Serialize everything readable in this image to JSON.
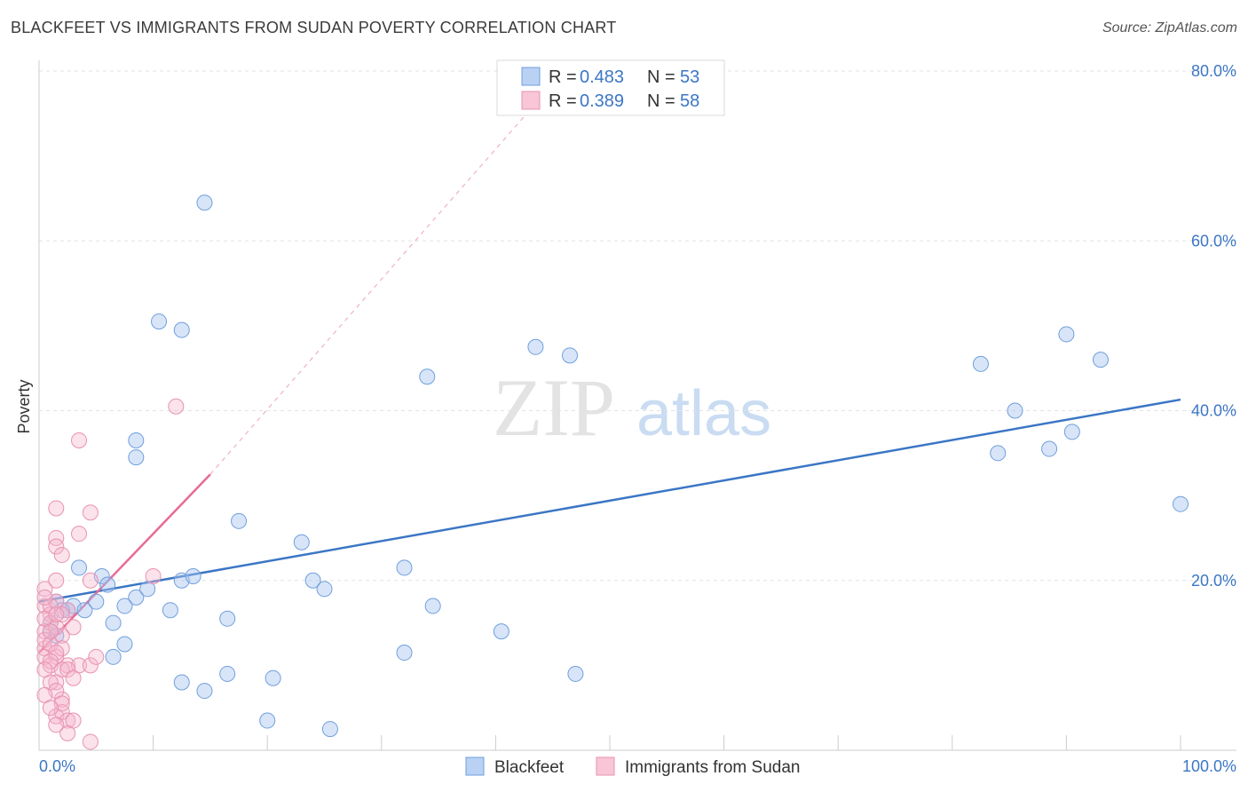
{
  "title": "BLACKFEET VS IMMIGRANTS FROM SUDAN POVERTY CORRELATION CHART",
  "source": "Source: ZipAtlas.com",
  "watermark": {
    "zip": "ZIP",
    "atlas": "atlas"
  },
  "colors": {
    "blue": "#3b76c5",
    "pink": "#e86a95",
    "blue_fill": "#a9c6f0",
    "pink_fill": "#f6b6cc"
  },
  "legend": {
    "blue": {
      "r_label": "R =",
      "r_value": "0.483",
      "n_label": "N =",
      "n_value": "53"
    },
    "pink": {
      "r_label": "R =",
      "r_value": "0.389",
      "n_label": "N =",
      "n_value": "58"
    }
  },
  "bottom_legend": [
    "Blackfeet",
    "Immigrants from Sudan"
  ],
  "chart_data": {
    "type": "scatter",
    "xlabel": "",
    "ylabel": "Poverty",
    "xlim": [
      0,
      100
    ],
    "ylim": [
      0,
      80
    ],
    "x_tick_labels": {
      "min": "0.0%",
      "max": "100.0%"
    },
    "y_tick_labels": [
      "20.0%",
      "40.0%",
      "60.0%",
      "80.0%"
    ],
    "y_ticks": [
      20,
      40,
      60,
      80
    ],
    "series": [
      {
        "name": "Blackfeet",
        "color": "#3b76c5",
        "points": [
          [
            14.5,
            64.5
          ],
          [
            10.5,
            50.5
          ],
          [
            12.5,
            49.5
          ],
          [
            8.5,
            36.5
          ],
          [
            8.5,
            34.5
          ],
          [
            3.5,
            21.5
          ],
          [
            5.5,
            20.5
          ],
          [
            6,
            19.5
          ],
          [
            8.5,
            18
          ],
          [
            9.5,
            19
          ],
          [
            2.5,
            16.5
          ],
          [
            3,
            17
          ],
          [
            4,
            16.5
          ],
          [
            5,
            17.5
          ],
          [
            7.5,
            17
          ],
          [
            11.5,
            16.5
          ],
          [
            6.5,
            15
          ],
          [
            7.5,
            12.5
          ],
          [
            6.5,
            11
          ],
          [
            12.5,
            20
          ],
          [
            13.5,
            20.5
          ],
          [
            17.5,
            27
          ],
          [
            16.5,
            15.5
          ],
          [
            12.5,
            8
          ],
          [
            14.5,
            7
          ],
          [
            16.5,
            9
          ],
          [
            20.5,
            8.5
          ],
          [
            20,
            3.5
          ],
          [
            23,
            24.5
          ],
          [
            24,
            20
          ],
          [
            25,
            19
          ],
          [
            25.5,
            2.5
          ],
          [
            34,
            44
          ],
          [
            32,
            21.5
          ],
          [
            34.5,
            17
          ],
          [
            32,
            11.5
          ],
          [
            40.5,
            14
          ],
          [
            43.5,
            47.5
          ],
          [
            46.5,
            46.5
          ],
          [
            47,
            9
          ],
          [
            82.5,
            45.5
          ],
          [
            85.5,
            40
          ],
          [
            84,
            35
          ],
          [
            88.5,
            35.5
          ],
          [
            90,
            49
          ],
          [
            90.5,
            37.5
          ],
          [
            93,
            46
          ],
          [
            100,
            29
          ],
          [
            1,
            14
          ],
          [
            1.5,
            17.5
          ],
          [
            2,
            16.5
          ],
          [
            1,
            15
          ],
          [
            1.5,
            13.5
          ]
        ]
      },
      {
        "name": "Immigrants from Sudan",
        "color": "#e86a95",
        "points": [
          [
            12,
            40.5
          ],
          [
            3.5,
            36.5
          ],
          [
            1.5,
            28.5
          ],
          [
            4.5,
            28
          ],
          [
            3.5,
            25.5
          ],
          [
            1.5,
            25
          ],
          [
            1.5,
            24
          ],
          [
            2,
            23
          ],
          [
            1.5,
            20
          ],
          [
            4.5,
            20
          ],
          [
            10,
            20.5
          ],
          [
            0.5,
            19
          ],
          [
            0.5,
            17
          ],
          [
            1,
            16
          ],
          [
            1.5,
            17.5
          ],
          [
            2.5,
            16.5
          ],
          [
            1,
            15
          ],
          [
            0.5,
            14
          ],
          [
            2,
            13.5
          ],
          [
            3,
            14.5
          ],
          [
            0.5,
            12
          ],
          [
            1.5,
            11
          ],
          [
            0.5,
            11
          ],
          [
            1,
            10
          ],
          [
            2.5,
            10
          ],
          [
            2,
            9.5
          ],
          [
            3.5,
            10
          ],
          [
            4.5,
            10
          ],
          [
            5,
            11
          ],
          [
            1.5,
            8
          ],
          [
            1,
            8
          ],
          [
            2,
            6
          ],
          [
            1.5,
            4
          ],
          [
            2,
            4.5
          ],
          [
            2.5,
            3.5
          ],
          [
            3,
            3.5
          ],
          [
            2.5,
            2
          ],
          [
            4.5,
            1
          ],
          [
            0.5,
            13
          ],
          [
            1,
            12.5
          ],
          [
            1.5,
            14.5
          ],
          [
            0.5,
            15.5
          ],
          [
            2,
            16
          ],
          [
            1,
            17
          ],
          [
            0.5,
            18
          ],
          [
            1.5,
            16
          ],
          [
            1,
            14
          ],
          [
            2,
            12
          ],
          [
            1.5,
            11.5
          ],
          [
            1,
            10.5
          ],
          [
            0.5,
            9.5
          ],
          [
            2.5,
            9.5
          ],
          [
            3,
            8.5
          ],
          [
            1.5,
            7
          ],
          [
            0.5,
            6.5
          ],
          [
            2,
            5.5
          ],
          [
            1,
            5
          ],
          [
            1.5,
            3
          ]
        ]
      }
    ],
    "trend_lines": [
      {
        "series": "Blackfeet",
        "x": [
          0,
          100
        ],
        "y": [
          17.5,
          41.3
        ]
      },
      {
        "series": "Immigrants from Sudan",
        "x": [
          0,
          15
        ],
        "y": [
          11.5,
          32.5
        ],
        "dashed_extension_to": [
          46,
          80
        ]
      }
    ]
  }
}
